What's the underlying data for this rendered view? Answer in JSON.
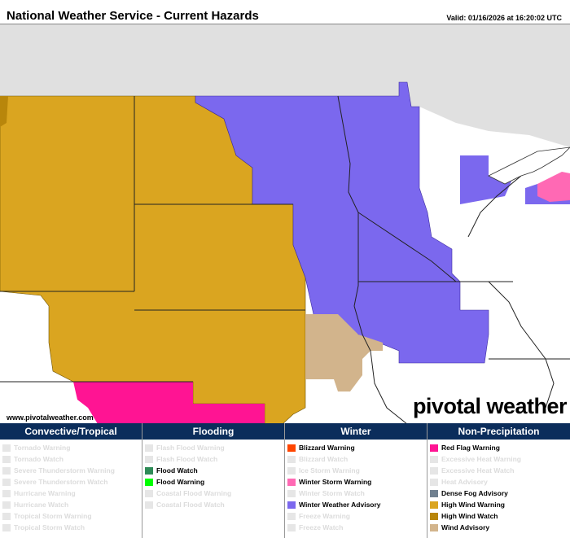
{
  "header": {
    "title": "National Weather Service - Current Hazards",
    "valid": "Valid: 01/16/2026 at 16:20:02 UTC"
  },
  "map": {
    "watermark": "www.pivotalweather.com",
    "logo": "pivotal weather",
    "colors": {
      "high_wind_warning": "#daa520",
      "high_wind_watch": "#b8860b",
      "winter_weather_advisory": "#7b68ee",
      "red_flag_warning": "#ff1493",
      "winter_storm_warning": "#ff69b4",
      "wind_advisory": "#d2b48c",
      "canada": "#e0e0e0"
    }
  },
  "legend": [
    {
      "title": "Convective/Tropical",
      "items": [
        {
          "label": "Tornado Warning",
          "active": false,
          "color": "#e6e6e6"
        },
        {
          "label": "Tornado Watch",
          "active": false,
          "color": "#e6e6e6"
        },
        {
          "label": "Severe Thunderstorm Warning",
          "active": false,
          "color": "#e6e6e6"
        },
        {
          "label": "Severe Thunderstorm Watch",
          "active": false,
          "color": "#e6e6e6"
        },
        {
          "label": "Hurricane Warning",
          "active": false,
          "color": "#e6e6e6"
        },
        {
          "label": "Hurricane Watch",
          "active": false,
          "color": "#e6e6e6"
        },
        {
          "label": "Tropical Storm Warning",
          "active": false,
          "color": "#e6e6e6"
        },
        {
          "label": "Tropical Storm Watch",
          "active": false,
          "color": "#e6e6e6"
        }
      ]
    },
    {
      "title": "Flooding",
      "items": [
        {
          "label": "Flash Flood Warning",
          "active": false,
          "color": "#e6e6e6"
        },
        {
          "label": "Flash Flood Watch",
          "active": false,
          "color": "#e6e6e6"
        },
        {
          "label": "Flood Watch",
          "active": true,
          "color": "#2e8b57"
        },
        {
          "label": "Flood Warning",
          "active": true,
          "color": "#00ff00"
        },
        {
          "label": "Coastal Flood Warning",
          "active": false,
          "color": "#e6e6e6"
        },
        {
          "label": "Coastal Flood Watch",
          "active": false,
          "color": "#e6e6e6"
        }
      ]
    },
    {
      "title": "Winter",
      "items": [
        {
          "label": "Blizzard Warning",
          "active": true,
          "color": "#ff4500"
        },
        {
          "label": "Blizzard Watch",
          "active": false,
          "color": "#e6e6e6"
        },
        {
          "label": "Ice Storm Warning",
          "active": false,
          "color": "#e6e6e6"
        },
        {
          "label": "Winter Storm Warning",
          "active": true,
          "color": "#ff69b4"
        },
        {
          "label": "Winter Storm Watch",
          "active": false,
          "color": "#e6e6e6"
        },
        {
          "label": "Winter Weather Advisory",
          "active": true,
          "color": "#7b68ee"
        },
        {
          "label": "Freeze Warning",
          "active": false,
          "color": "#e6e6e6"
        },
        {
          "label": "Freeze Watch",
          "active": false,
          "color": "#e6e6e6"
        }
      ]
    },
    {
      "title": "Non-Precipitation",
      "items": [
        {
          "label": "Red Flag Warning",
          "active": true,
          "color": "#ff1493"
        },
        {
          "label": "Excessive Heat Warning",
          "active": false,
          "color": "#e6e6e6"
        },
        {
          "label": "Excessive Heat Watch",
          "active": false,
          "color": "#e6e6e6"
        },
        {
          "label": "Heat Advisory",
          "active": false,
          "color": "#e6e6e6"
        },
        {
          "label": "Dense Fog Advisory",
          "active": true,
          "color": "#708090"
        },
        {
          "label": "High Wind Warning",
          "active": true,
          "color": "#daa520"
        },
        {
          "label": "High Wind Watch",
          "active": true,
          "color": "#b8860b"
        },
        {
          "label": "Wind Advisory",
          "active": true,
          "color": "#d2b48c"
        }
      ]
    }
  ]
}
